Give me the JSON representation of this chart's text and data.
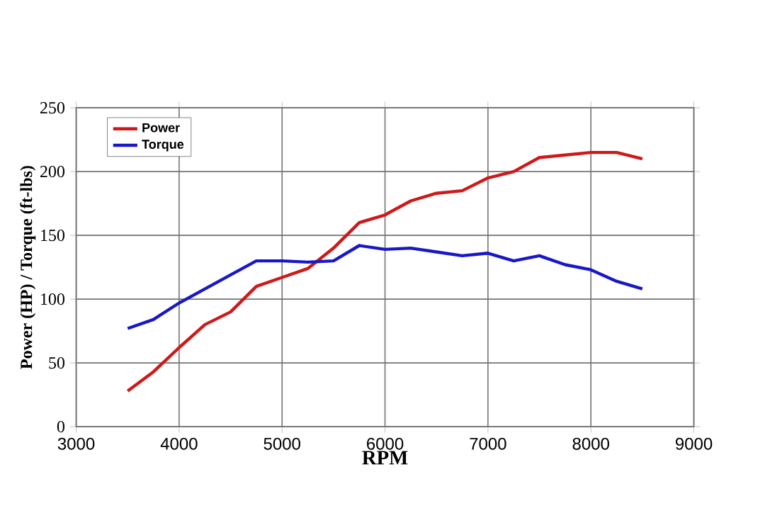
{
  "chart_data": {
    "type": "line",
    "xlabel": "RPM",
    "ylabel": "Power (HP) / Torque (ft-lbs)",
    "x": [
      3500,
      3750,
      4000,
      4250,
      4500,
      4750,
      5000,
      5250,
      5500,
      5750,
      6000,
      6250,
      6500,
      6750,
      7000,
      7250,
      7500,
      7750,
      8000,
      8250,
      8500
    ],
    "series": [
      {
        "name": "Power",
        "color": "#d01818",
        "values": [
          28,
          43,
          62,
          80,
          90,
          110,
          117,
          124,
          140,
          160,
          166,
          177,
          183,
          185,
          195,
          200,
          211,
          213,
          215,
          215,
          210
        ]
      },
      {
        "name": "Torque",
        "color": "#1818c8",
        "values": [
          77,
          84,
          97,
          108,
          119,
          130,
          130,
          129,
          130,
          142,
          139,
          140,
          137,
          134,
          136,
          130,
          134,
          127,
          123,
          114,
          108
        ]
      }
    ],
    "xlim": [
      3000,
      9000
    ],
    "xticks": [
      3000,
      4000,
      5000,
      6000,
      7000,
      8000,
      9000
    ],
    "ylim": [
      0,
      250
    ],
    "yticks": [
      0,
      50,
      100,
      150,
      200,
      250
    ],
    "grid": true,
    "legend": "top left",
    "marker": "none",
    "line_style": "solid"
  }
}
